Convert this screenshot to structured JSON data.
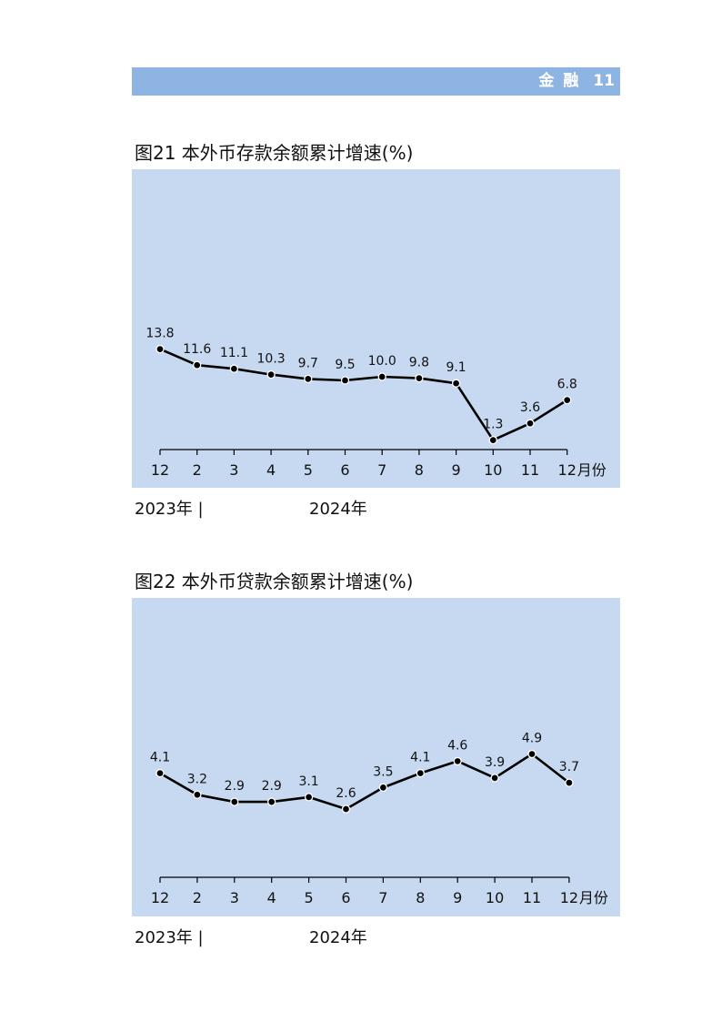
{
  "header": {
    "section": "金 融",
    "page_number": "11"
  },
  "chart_data": [
    {
      "type": "line",
      "title": "图21  本外币存款余额累计增速(%)",
      "categories": [
        "12",
        "2",
        "3",
        "4",
        "5",
        "6",
        "7",
        "8",
        "9",
        "10",
        "11",
        "12"
      ],
      "values": [
        13.8,
        11.6,
        11.1,
        10.3,
        9.7,
        9.5,
        10.0,
        9.8,
        9.1,
        1.3,
        3.6,
        6.8
      ],
      "value_labels": [
        "13.8",
        "11.6",
        "11.1",
        "10.3",
        "9.7",
        "9.5",
        "10.0",
        "9.8",
        "9.1",
        "1.3",
        "3.6",
        "6.8"
      ],
      "x_unit": "月份",
      "year_labels": [
        "2023年 |",
        "2024年"
      ],
      "ylim": [
        0,
        26
      ],
      "grid": false,
      "legend": "none",
      "colors": {
        "background": "#c6d9f1",
        "line": "#000000"
      }
    },
    {
      "type": "line",
      "title": "图22  本外币贷款余额累计增速(%)",
      "categories": [
        "12",
        "2",
        "3",
        "4",
        "5",
        "6",
        "7",
        "8",
        "9",
        "10",
        "11",
        "12"
      ],
      "values": [
        4.1,
        3.2,
        2.9,
        2.9,
        3.1,
        2.6,
        3.5,
        4.1,
        4.6,
        3.9,
        4.9,
        3.7
      ],
      "value_labels": [
        "4.1",
        "3.2",
        "2.9",
        "2.9",
        "3.1",
        "2.6",
        "3.5",
        "4.1",
        "4.6",
        "3.9",
        "4.9",
        "3.7"
      ],
      "x_unit": "月份",
      "year_labels": [
        "2023年 |",
        "2024年"
      ],
      "ylim": [
        -0.25,
        8.0
      ],
      "grid": false,
      "legend": "none",
      "colors": {
        "background": "#c6d9f1",
        "line": "#000000"
      }
    }
  ]
}
